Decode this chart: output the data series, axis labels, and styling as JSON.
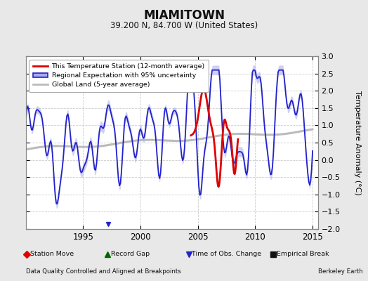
{
  "title": "MIAMITOWN",
  "subtitle": "39.200 N, 84.700 W (United States)",
  "ylabel": "Temperature Anomaly (°C)",
  "xlim": [
    1990.0,
    2015.5
  ],
  "ylim": [
    -2.0,
    3.0
  ],
  "yticks": [
    -2,
    -1.5,
    -1,
    -0.5,
    0,
    0.5,
    1,
    1.5,
    2,
    2.5,
    3
  ],
  "xticks": [
    1995,
    2000,
    2005,
    2010,
    2015
  ],
  "bg_color": "#e8e8e8",
  "plot_bg_color": "#ffffff",
  "footer_left": "Data Quality Controlled and Aligned at Breakpoints",
  "footer_right": "Berkeley Earth",
  "regional_color": "#2222cc",
  "regional_fill": "#8888dd",
  "station_color": "#dd0000",
  "global_color": "#bbbbbb",
  "bottom_legend": [
    {
      "label": "Station Move",
      "color": "#dd0000",
      "marker": "D"
    },
    {
      "label": "Record Gap",
      "color": "#006600",
      "marker": "^"
    },
    {
      "label": "Time of Obs. Change",
      "color": "#2222cc",
      "marker": "v"
    },
    {
      "label": "Empirical Break",
      "color": "#111111",
      "marker": "s"
    }
  ],
  "obs_change_year": 1997.2
}
